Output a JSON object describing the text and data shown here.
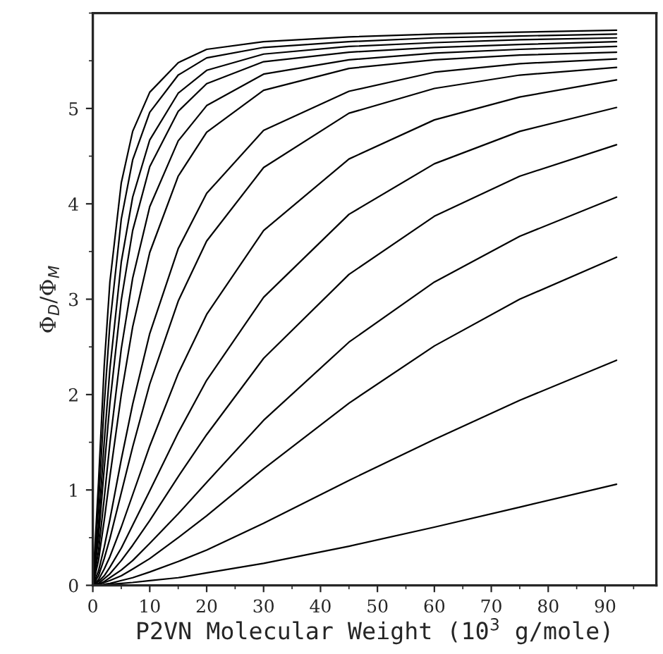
{
  "chart_data": {
    "type": "line",
    "xlabel": "P2VN Molecular Weight (10$^{3}$ g/mole)",
    "ylabel": "Φ$_{D}$/Φ$_{M}$",
    "x": [
      0,
      1,
      2,
      3,
      5,
      7,
      10,
      15,
      20,
      30,
      45,
      60,
      75,
      92
    ],
    "xlim": [
      0,
      99
    ],
    "ylim": [
      0,
      6
    ],
    "xticks": [
      0,
      10,
      20,
      30,
      40,
      50,
      60,
      70,
      80,
      90
    ],
    "yticks": [
      0,
      1,
      2,
      3,
      4,
      5
    ],
    "grid": false,
    "legend": false,
    "marker": "none",
    "line_style": "solid",
    "series": [
      {
        "color": "#000000",
        "values": [
          0,
          1.08,
          2.3,
          3.18,
          4.22,
          4.76,
          5.17,
          5.48,
          5.62,
          5.7,
          5.75,
          5.78,
          5.8,
          5.82
        ]
      },
      {
        "color": "#000000",
        "values": [
          0,
          0.84,
          1.89,
          2.74,
          3.84,
          4.46,
          4.96,
          5.35,
          5.53,
          5.64,
          5.7,
          5.74,
          5.76,
          5.78
        ]
      },
      {
        "color": "#000000",
        "values": [
          0,
          0.63,
          1.5,
          2.27,
          3.39,
          4.07,
          4.67,
          5.16,
          5.4,
          5.57,
          5.65,
          5.69,
          5.72,
          5.74
        ]
      },
      {
        "color": "#000000",
        "values": [
          0,
          0.5,
          1.22,
          1.91,
          2.99,
          3.72,
          4.39,
          4.97,
          5.26,
          5.49,
          5.59,
          5.64,
          5.67,
          5.7
        ]
      },
      {
        "color": "#000000",
        "values": [
          0,
          0.36,
          0.91,
          1.49,
          2.48,
          3.22,
          3.97,
          4.66,
          5.03,
          5.36,
          5.51,
          5.58,
          5.62,
          5.65
        ]
      },
      {
        "color": "#000000",
        "values": [
          0,
          0.26,
          0.68,
          1.14,
          2.0,
          2.71,
          3.49,
          4.29,
          4.75,
          5.19,
          5.42,
          5.51,
          5.56,
          5.59
        ]
      },
      {
        "color": "#000000",
        "values": [
          0,
          0.15,
          0.4,
          0.69,
          1.32,
          1.9,
          2.64,
          3.53,
          4.11,
          4.77,
          5.18,
          5.38,
          5.47,
          5.52
        ]
      },
      {
        "color": "#000000",
        "values": [
          0,
          0.1,
          0.28,
          0.49,
          0.97,
          1.45,
          2.11,
          2.98,
          3.61,
          4.38,
          4.95,
          5.21,
          5.35,
          5.43
        ]
      },
      {
        "color": "#000000",
        "values": [
          0,
          0.06,
          0.17,
          0.3,
          0.61,
          0.95,
          1.46,
          2.22,
          2.84,
          3.72,
          4.47,
          4.88,
          5.12,
          5.3
        ]
      },
      {
        "color": "#000000",
        "values": [
          0,
          0.04,
          0.1,
          0.19,
          0.39,
          0.63,
          0.99,
          1.6,
          2.15,
          3.02,
          3.89,
          4.42,
          4.76,
          5.01
        ]
      },
      {
        "color": "#000000",
        "values": [
          0,
          0.02,
          0.07,
          0.12,
          0.26,
          0.42,
          0.68,
          1.14,
          1.58,
          2.38,
          3.26,
          3.87,
          4.29,
          4.62
        ]
      },
      {
        "color": "#000000",
        "values": [
          0,
          0.01,
          0.04,
          0.08,
          0.16,
          0.26,
          0.44,
          0.75,
          1.08,
          1.73,
          2.55,
          3.18,
          3.66,
          4.07
        ]
      },
      {
        "color": "#000000",
        "values": [
          0,
          0.01,
          0.03,
          0.05,
          0.1,
          0.17,
          0.28,
          0.5,
          0.73,
          1.22,
          1.91,
          2.51,
          3.0,
          3.44
        ]
      },
      {
        "color": "#000000",
        "values": [
          0,
          0.0,
          0.01,
          0.02,
          0.05,
          0.08,
          0.14,
          0.25,
          0.37,
          0.65,
          1.1,
          1.53,
          1.94,
          2.36
        ]
      },
      {
        "color": "#000000",
        "values": [
          0,
          0.0,
          0.0,
          0.01,
          0.02,
          0.03,
          0.05,
          0.08,
          0.13,
          0.23,
          0.41,
          0.61,
          0.82,
          1.06
        ]
      }
    ]
  }
}
